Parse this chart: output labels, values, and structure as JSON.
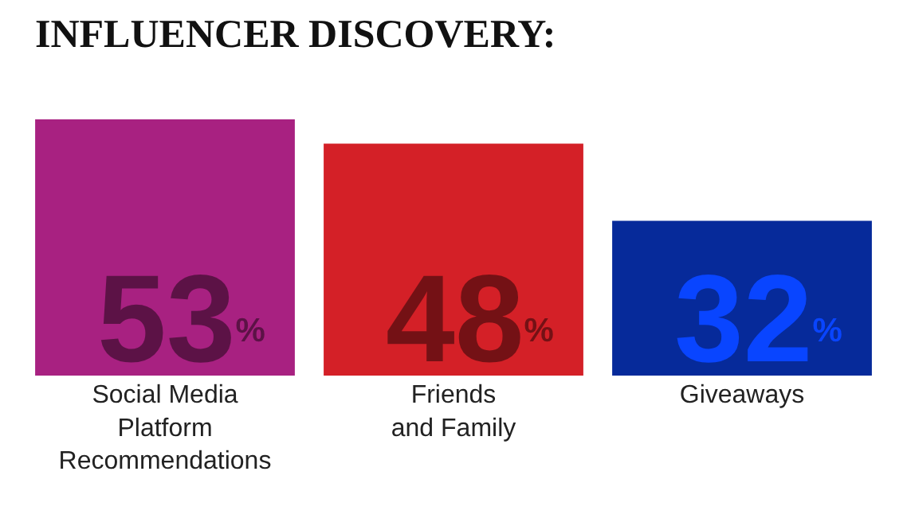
{
  "chart_data": {
    "type": "bar",
    "title": "INFLUENCER DISCOVERY:",
    "categories": [
      "Social Media\nPlatform\nRecommendations",
      "Friends\nand Family",
      "Giveaways"
    ],
    "values": [
      53,
      48,
      32
    ],
    "colors": [
      "#a82181",
      "#d42027",
      "#062a9a"
    ],
    "value_labels": [
      "53$^{%}$",
      "48$^{%}$",
      "32$^{%}$"
    ]
  }
}
